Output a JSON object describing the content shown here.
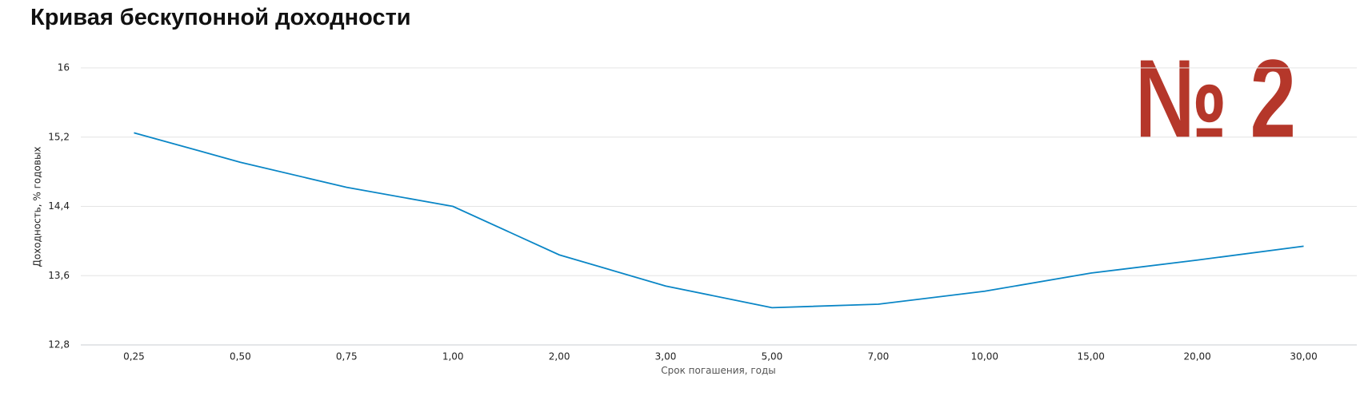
{
  "chart_data": {
    "type": "line",
    "title": "Кривая бескупонной доходности",
    "annotation": "№ 2",
    "xlabel": "Срок погашения, годы",
    "ylabel": "Доходность, % годовых",
    "categories": [
      "0,25",
      "0,50",
      "0,75",
      "1,00",
      "2,00",
      "3,00",
      "5,00",
      "7,00",
      "10,00",
      "15,00",
      "20,00",
      "30,00"
    ],
    "series": [
      {
        "color": "#0a86c6",
        "values": [
          15.25,
          14.91,
          14.62,
          14.4,
          13.84,
          13.48,
          13.23,
          13.27,
          13.42,
          13.63,
          13.78,
          13.94
        ]
      }
    ],
    "ylim": [
      12.8,
      16
    ],
    "yticks": [
      {
        "value": 12.8,
        "label": "12,8"
      },
      {
        "value": 13.6,
        "label": "13,6"
      },
      {
        "value": 14.4,
        "label": "14,4"
      },
      {
        "value": 15.2,
        "label": "15,2"
      },
      16
    ],
    "grid": true
  }
}
